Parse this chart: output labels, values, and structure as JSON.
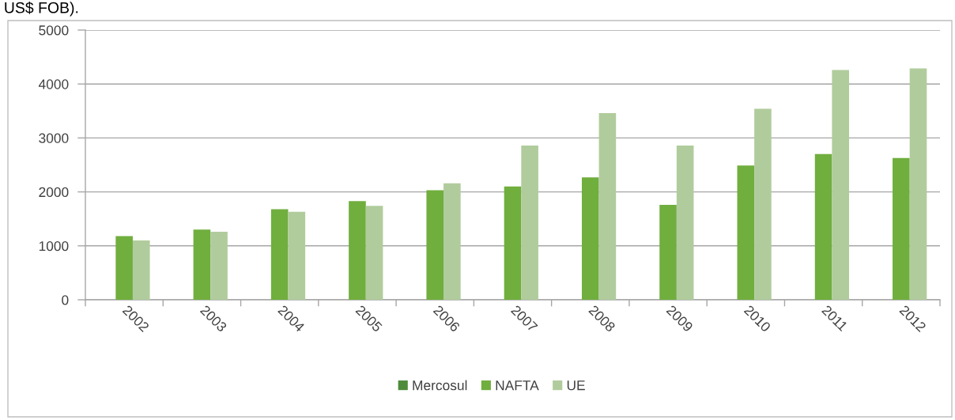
{
  "chart_data": {
    "type": "bar",
    "annotations": [
      "US$ FOB)."
    ],
    "categories": [
      "2002",
      "2003",
      "2004",
      "2005",
      "2006",
      "2007",
      "2008",
      "2009",
      "2010",
      "2011",
      "2012"
    ],
    "series": [
      {
        "name": "Mercosul",
        "color": "#4e8b3a",
        "values": [
          null,
          null,
          null,
          null,
          null,
          null,
          null,
          null,
          null,
          null,
          null
        ]
      },
      {
        "name": "NAFTA",
        "color": "#70ae3e",
        "values": [
          1180,
          1300,
          1680,
          1830,
          2030,
          2100,
          2270,
          1760,
          2490,
          2700,
          2630
        ]
      },
      {
        "name": "UE",
        "color": "#b0cc9c",
        "values": [
          1100,
          1260,
          1630,
          1740,
          2160,
          2860,
          3460,
          2860,
          3540,
          4260,
          4290
        ]
      }
    ],
    "ylim": [
      0,
      5000
    ],
    "yticks": [
      0,
      1000,
      2000,
      3000,
      4000,
      5000
    ],
    "grid": "y",
    "legend": "bottom"
  }
}
